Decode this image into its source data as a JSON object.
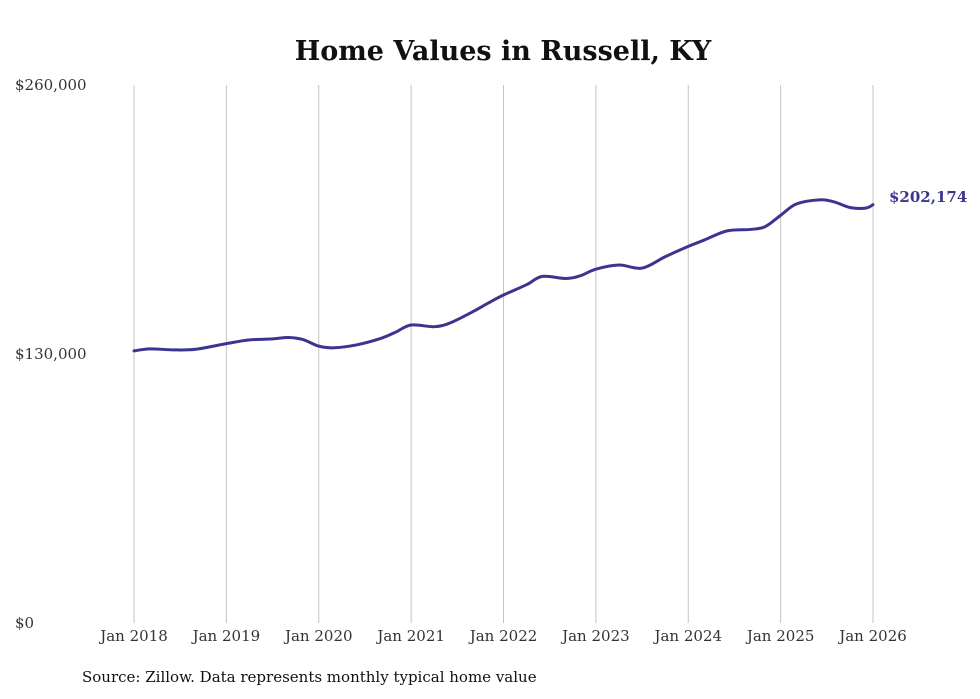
{
  "chart_data": {
    "type": "line",
    "title": "Home Values in Russell, KY",
    "xlabel": "",
    "ylabel": "",
    "ylim": [
      0,
      260000
    ],
    "yticks": [
      0,
      130000,
      260000
    ],
    "ytick_labels": [
      "$0",
      "$130,000",
      "$260,000"
    ],
    "xticks": [
      2018,
      2019,
      2020,
      2021,
      2022,
      2023,
      2024,
      2025,
      2026
    ],
    "xtick_labels": [
      "Jan 2018",
      "Jan 2019",
      "Jan 2020",
      "Jan 2021",
      "Jan 2022",
      "Jan 2023",
      "Jan 2024",
      "Jan 2025",
      "Jan 2026"
    ],
    "grid": "vertical",
    "line_color": "#3b3590",
    "end_label": "$202,174",
    "series": [
      {
        "name": "Typical home value",
        "x": [
          2018.0,
          2018.17,
          2018.42,
          2018.67,
          2019.0,
          2019.25,
          2019.5,
          2019.67,
          2019.83,
          2020.0,
          2020.17,
          2020.42,
          2020.67,
          2020.83,
          2021.0,
          2021.25,
          2021.42,
          2021.67,
          2021.83,
          2022.0,
          2022.25,
          2022.42,
          2022.67,
          2022.83,
          2023.0,
          2023.25,
          2023.5,
          2023.75,
          2024.0,
          2024.17,
          2024.42,
          2024.67,
          2024.83,
          2025.0,
          2025.17,
          2025.42,
          2025.58,
          2025.75,
          2025.92,
          2026.0
        ],
        "y": [
          131500,
          132500,
          132000,
          132300,
          135000,
          136800,
          137300,
          138000,
          137000,
          133800,
          133000,
          134500,
          137500,
          140500,
          144000,
          143200,
          145000,
          150500,
          154500,
          158500,
          163500,
          167500,
          166500,
          167800,
          171000,
          173000,
          171500,
          177000,
          182000,
          185000,
          189500,
          190200,
          191500,
          197000,
          202500,
          204500,
          203500,
          200800,
          200500,
          202174
        ]
      }
    ]
  },
  "source": "Source: Zillow. Data represents monthly typical home value"
}
